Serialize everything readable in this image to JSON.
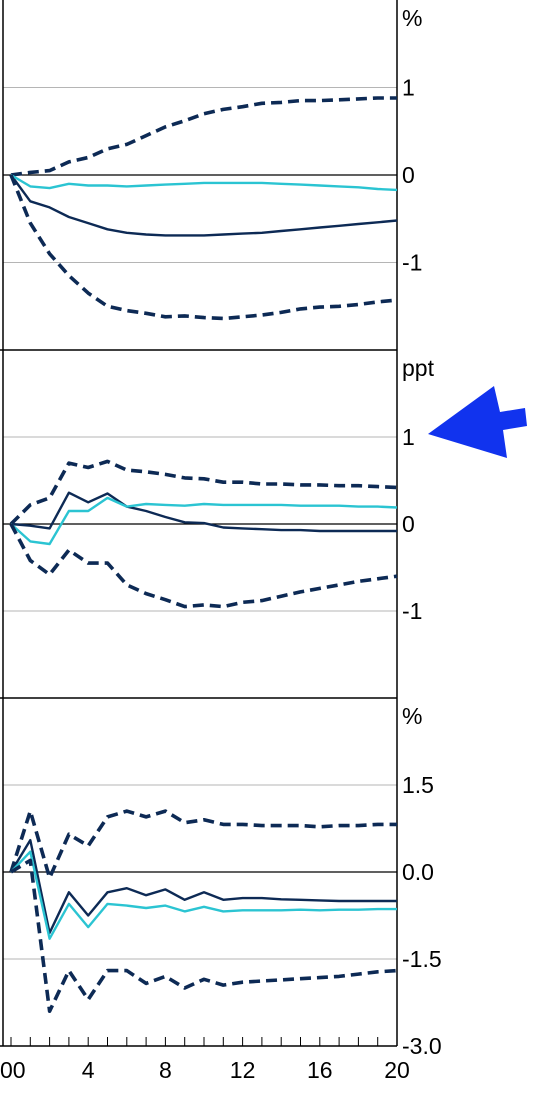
{
  "chart_data": [
    {
      "type": "line",
      "unit_label": "%",
      "y_ticks": [
        {
          "value": 1,
          "label": "1"
        },
        {
          "value": 0,
          "label": "0"
        },
        {
          "value": -1,
          "label": "-1"
        }
      ],
      "ylim": [
        -2,
        2
      ],
      "grid": true,
      "series": [
        {
          "style": "dashed",
          "color": "#0d2a55",
          "values": [
            0,
            0.03,
            0.05,
            0.15,
            0.2,
            0.3,
            0.35,
            0.45,
            0.55,
            0.62,
            0.7,
            0.75,
            0.78,
            0.82,
            0.83,
            0.85,
            0.85,
            0.86,
            0.87,
            0.88,
            0.88
          ]
        },
        {
          "style": "solid",
          "color": "#0d2a55",
          "values": [
            0,
            -0.3,
            -0.37,
            -0.48,
            -0.55,
            -0.62,
            -0.66,
            -0.68,
            -0.69,
            -0.69,
            -0.69,
            -0.68,
            -0.67,
            -0.66,
            -0.64,
            -0.62,
            -0.6,
            -0.58,
            -0.56,
            -0.54,
            -0.52
          ]
        },
        {
          "style": "solid",
          "color": "#2bc4d2",
          "values": [
            0,
            -0.13,
            -0.15,
            -0.1,
            -0.12,
            -0.12,
            -0.13,
            -0.12,
            -0.11,
            -0.1,
            -0.09,
            -0.09,
            -0.09,
            -0.09,
            -0.1,
            -0.11,
            -0.12,
            -0.13,
            -0.14,
            -0.16,
            -0.17
          ]
        },
        {
          "style": "dashed",
          "color": "#0d2a55",
          "values": [
            0,
            -0.55,
            -0.9,
            -1.15,
            -1.35,
            -1.5,
            -1.55,
            -1.58,
            -1.62,
            -1.61,
            -1.63,
            -1.64,
            -1.62,
            -1.6,
            -1.57,
            -1.53,
            -1.51,
            -1.5,
            -1.48,
            -1.45,
            -1.43
          ]
        }
      ]
    },
    {
      "type": "line",
      "unit_label": "ppt",
      "y_ticks": [
        {
          "value": 1,
          "label": "1"
        },
        {
          "value": 0,
          "label": "0"
        },
        {
          "value": -1,
          "label": "-1"
        }
      ],
      "ylim": [
        -2,
        2
      ],
      "grid": true,
      "series": [
        {
          "style": "dashed",
          "color": "#0d2a55",
          "values": [
            0,
            0.22,
            0.3,
            0.7,
            0.65,
            0.72,
            0.62,
            0.6,
            0.57,
            0.53,
            0.52,
            0.48,
            0.48,
            0.46,
            0.46,
            0.45,
            0.45,
            0.44,
            0.44,
            0.43,
            0.42
          ]
        },
        {
          "style": "solid",
          "color": "#0d2a55",
          "values": [
            0,
            -0.02,
            -0.05,
            0.36,
            0.25,
            0.35,
            0.2,
            0.15,
            0.08,
            0.02,
            0.01,
            -0.04,
            -0.05,
            -0.06,
            -0.07,
            -0.07,
            -0.08,
            -0.08,
            -0.08,
            -0.08,
            -0.08
          ]
        },
        {
          "style": "solid",
          "color": "#2bc4d2",
          "values": [
            0,
            -0.2,
            -0.23,
            0.15,
            0.15,
            0.3,
            0.2,
            0.23,
            0.22,
            0.21,
            0.23,
            0.22,
            0.22,
            0.22,
            0.22,
            0.21,
            0.21,
            0.21,
            0.2,
            0.2,
            0.19
          ]
        },
        {
          "style": "dashed",
          "color": "#0d2a55",
          "values": [
            0,
            -0.42,
            -0.58,
            -0.3,
            -0.45,
            -0.45,
            -0.7,
            -0.8,
            -0.87,
            -0.95,
            -0.93,
            -0.95,
            -0.9,
            -0.88,
            -0.83,
            -0.78,
            -0.74,
            -0.7,
            -0.66,
            -0.63,
            -0.6
          ]
        }
      ]
    },
    {
      "type": "line",
      "unit_label": "%",
      "y_ticks": [
        {
          "value": 1.5,
          "label": "1.5"
        },
        {
          "value": 0,
          "label": "0.0"
        },
        {
          "value": -1.5,
          "label": "-1.5"
        },
        {
          "value": -3,
          "label": "-3.0"
        }
      ],
      "ylim": [
        -3,
        3
      ],
      "grid": true,
      "series": [
        {
          "style": "dashed",
          "color": "#0d2a55",
          "values": [
            0,
            1.05,
            -0.1,
            0.65,
            0.45,
            0.95,
            1.05,
            0.95,
            1.05,
            0.85,
            0.9,
            0.82,
            0.82,
            0.8,
            0.8,
            0.8,
            0.78,
            0.8,
            0.8,
            0.82,
            0.82
          ]
        },
        {
          "style": "solid",
          "color": "#0d2a55",
          "values": [
            0,
            0.55,
            -1.05,
            -0.35,
            -0.75,
            -0.35,
            -0.28,
            -0.4,
            -0.3,
            -0.48,
            -0.35,
            -0.48,
            -0.45,
            -0.45,
            -0.47,
            -0.48,
            -0.49,
            -0.5,
            -0.5,
            -0.5,
            -0.5
          ]
        },
        {
          "style": "solid",
          "color": "#2bc4d2",
          "values": [
            0,
            0.35,
            -1.15,
            -0.55,
            -0.95,
            -0.55,
            -0.58,
            -0.62,
            -0.58,
            -0.68,
            -0.6,
            -0.68,
            -0.66,
            -0.66,
            -0.66,
            -0.65,
            -0.66,
            -0.65,
            -0.65,
            -0.64,
            -0.64
          ]
        },
        {
          "style": "dashed",
          "color": "#0d2a55",
          "values": [
            0,
            0.2,
            -2.4,
            -1.7,
            -2.2,
            -1.7,
            -1.7,
            -1.92,
            -1.8,
            -2.0,
            -1.85,
            -1.95,
            -1.9,
            -1.88,
            -1.86,
            -1.84,
            -1.82,
            -1.8,
            -1.76,
            -1.72,
            -1.7
          ]
        }
      ]
    }
  ],
  "x_axis": {
    "x": [
      0,
      1,
      2,
      3,
      4,
      5,
      6,
      7,
      8,
      9,
      10,
      11,
      12,
      13,
      14,
      15,
      16,
      17,
      18,
      19,
      20
    ],
    "tick_labels": [
      {
        "value": 0,
        "label": "00"
      },
      {
        "value": 4,
        "label": "4"
      },
      {
        "value": 8,
        "label": "8"
      },
      {
        "value": 12,
        "label": "12"
      },
      {
        "value": 16,
        "label": "16"
      },
      {
        "value": 20,
        "label": "20"
      }
    ],
    "xlim": [
      0,
      20
    ]
  },
  "arrow": {
    "color": "#1133ee",
    "icon": "arrow-pointer-icon"
  }
}
